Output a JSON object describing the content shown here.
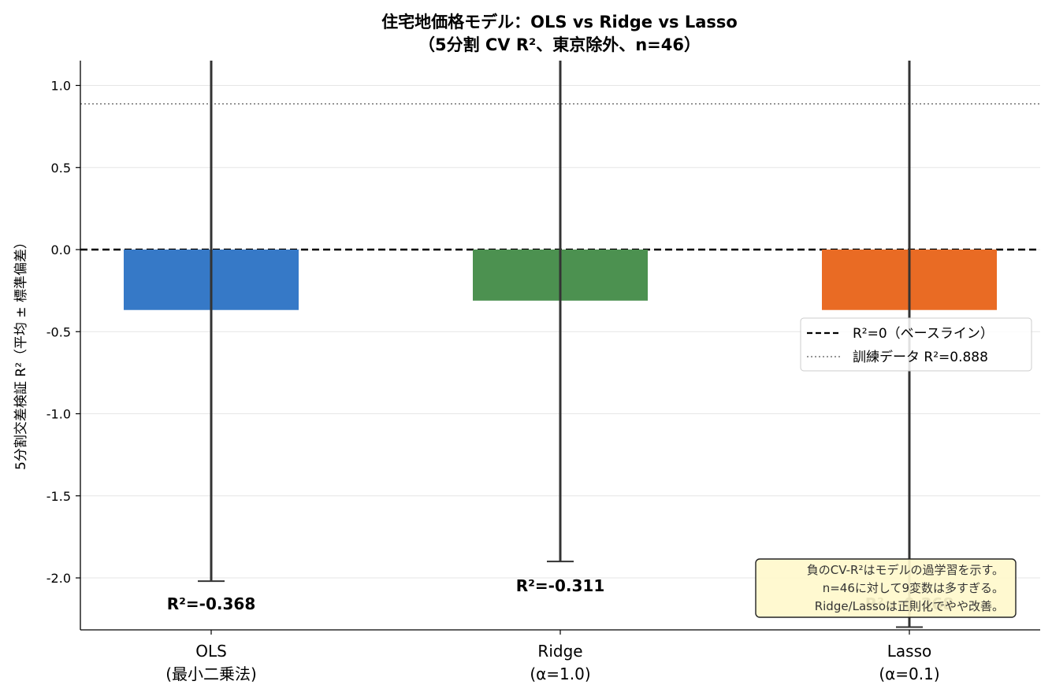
{
  "chart_data": {
    "type": "bar",
    "title": "住宅地価格モデル：OLS vs Ridge vs Lasso",
    "subtitle": "（5分割 CV R²、東京除外、n=46）",
    "ylabel": "5分割交差検証 R²（平均 ± 標準偏差）",
    "ylim": [
      -2.32,
      1.15
    ],
    "yticks": [
      1.0,
      0.5,
      0.0,
      -0.5,
      -1.0,
      -1.5,
      -2.0
    ],
    "ytick_labels": [
      "1.0",
      "0.5",
      "0.0",
      "-0.5",
      "-1.0",
      "-1.5",
      "-2.0"
    ],
    "grid": true,
    "categories": [
      {
        "line1": "OLS",
        "line2": "(最小二乗法)"
      },
      {
        "line1": "Ridge",
        "line2": "(α=1.0)"
      },
      {
        "line1": "Lasso",
        "line2": "(α=0.1)"
      }
    ],
    "values": [
      -0.368,
      -0.311,
      -0.368
    ],
    "error_low": [
      -2.02,
      -1.9,
      -2.3
    ],
    "error_high": [
      1.3,
      1.3,
      1.3
    ],
    "colors": [
      "#3679c7",
      "#4c9150",
      "#e96b24"
    ],
    "data_labels": [
      "R²=-0.368",
      "R²=-0.311",
      "R²=-0.368"
    ],
    "baseline": {
      "value": 0,
      "label": "R²=0（ベースライン）",
      "color": "#000000"
    },
    "train_line": {
      "value": 0.888,
      "label": "訓練データ R²=0.888",
      "color": "#888888"
    },
    "legend_position": "center-right",
    "annotation": {
      "lines": [
        "負のCV-R²はモデルの過学習を示す。",
        "n=46に対して9変数は多すぎる。",
        "Ridge/Lassoは正則化でやや改善。"
      ],
      "background": "#fff8cc"
    }
  }
}
